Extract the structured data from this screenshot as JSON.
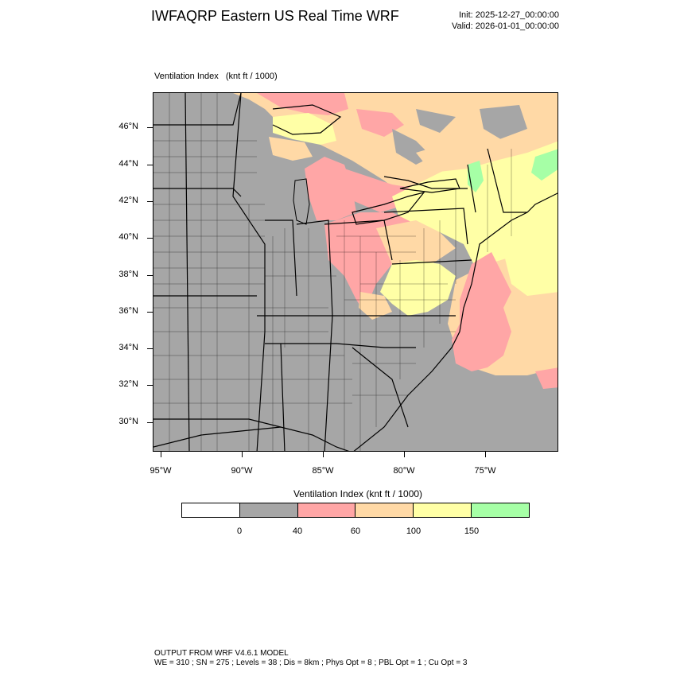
{
  "header": {
    "title": "IWFAQRP Eastern US Real Time WRF",
    "init": "Init: 2025-12-27_00:00:00",
    "valid": "Valid: 2026-01-01_00:00:00"
  },
  "map": {
    "field_title": "Ventilation Index   (knt ft / 1000)",
    "lat_labels": [
      "46°N",
      "44°N",
      "42°N",
      "40°N",
      "38°N",
      "36°N",
      "34°N",
      "32°N",
      "30°N"
    ],
    "lon_labels": [
      "95°W",
      "90°W",
      "85°W",
      "80°W",
      "75°W"
    ],
    "colors": {
      "gray": "#a6a6a6",
      "pink": "#ffa6a6",
      "peach": "#ffd9a6",
      "yellow": "#ffff a6",
      "green": "#a6ffa6",
      "boundary": "#000000"
    }
  },
  "colorbar": {
    "title": "Ventilation Index  (knt ft / 1000)",
    "colors": [
      "#ffffff",
      "#a6a6a6",
      "#ffa6a6",
      "#ffd9a6",
      "#ffffa6",
      "#a6ffa6"
    ],
    "labels": [
      "0",
      "40",
      "60",
      "100",
      "150"
    ]
  },
  "footer": {
    "line1": "OUTPUT FROM WRF V4.6.1 MODEL",
    "line2": "WE = 310 ; SN = 275 ; Levels = 38 ; Dis = 8km ; Phys Opt = 8 ; PBL Opt = 1 ; Cu Opt = 3"
  }
}
